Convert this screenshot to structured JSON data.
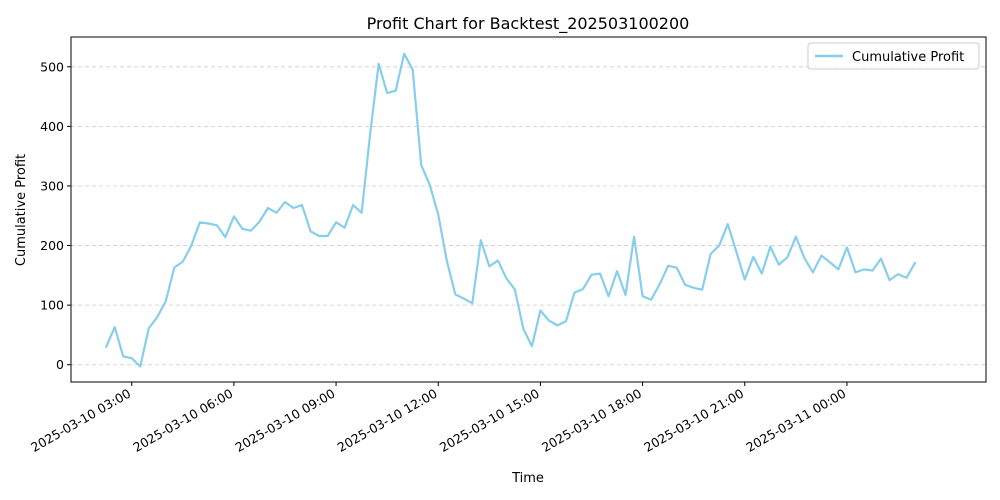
{
  "chart_data": {
    "type": "line",
    "title": "Profit Chart for Backtest_202503100200",
    "xlabel": "Time",
    "ylabel": "Cumulative Profit",
    "grid": "y-dashed",
    "legend_position": "top-right",
    "xlim": [
      "2025-03-10 01:13",
      "2025-03-11 04:05"
    ],
    "ylim": [
      -29,
      550
    ],
    "x_ticks": [
      "2025-03-10 03:00",
      "2025-03-10 06:00",
      "2025-03-10 09:00",
      "2025-03-10 12:00",
      "2025-03-10 15:00",
      "2025-03-10 18:00",
      "2025-03-10 21:00",
      "2025-03-11 00:00"
    ],
    "y_ticks": [
      0,
      100,
      200,
      300,
      400,
      500
    ],
    "series": [
      {
        "name": "Cumulative Profit",
        "color": "#87ceeb",
        "x": [
          "2025-03-10 02:15",
          "2025-03-10 02:30",
          "2025-03-10 02:45",
          "2025-03-10 03:00",
          "2025-03-10 03:15",
          "2025-03-10 03:30",
          "2025-03-10 03:45",
          "2025-03-10 04:00",
          "2025-03-10 04:15",
          "2025-03-10 04:30",
          "2025-03-10 04:45",
          "2025-03-10 05:00",
          "2025-03-10 05:15",
          "2025-03-10 05:30",
          "2025-03-10 05:45",
          "2025-03-10 06:00",
          "2025-03-10 06:15",
          "2025-03-10 06:30",
          "2025-03-10 06:45",
          "2025-03-10 07:00",
          "2025-03-10 07:15",
          "2025-03-10 07:30",
          "2025-03-10 07:45",
          "2025-03-10 08:00",
          "2025-03-10 08:15",
          "2025-03-10 08:30",
          "2025-03-10 08:45",
          "2025-03-10 09:00",
          "2025-03-10 09:15",
          "2025-03-10 09:30",
          "2025-03-10 09:45",
          "2025-03-10 10:00",
          "2025-03-10 10:15",
          "2025-03-10 10:30",
          "2025-03-10 10:45",
          "2025-03-10 11:00",
          "2025-03-10 11:15",
          "2025-03-10 11:30",
          "2025-03-10 11:45",
          "2025-03-10 12:00",
          "2025-03-10 12:15",
          "2025-03-10 12:30",
          "2025-03-10 12:45",
          "2025-03-10 13:00",
          "2025-03-10 13:15",
          "2025-03-10 13:30",
          "2025-03-10 13:45",
          "2025-03-10 14:00",
          "2025-03-10 14:15",
          "2025-03-10 14:30",
          "2025-03-10 14:45",
          "2025-03-10 15:00",
          "2025-03-10 15:15",
          "2025-03-10 15:30",
          "2025-03-10 15:45",
          "2025-03-10 16:00",
          "2025-03-10 16:15",
          "2025-03-10 16:30",
          "2025-03-10 16:45",
          "2025-03-10 17:00",
          "2025-03-10 17:15",
          "2025-03-10 17:30",
          "2025-03-10 17:45",
          "2025-03-10 18:00",
          "2025-03-10 18:15",
          "2025-03-10 18:30",
          "2025-03-10 18:45",
          "2025-03-10 19:00",
          "2025-03-10 19:15",
          "2025-03-10 19:30",
          "2025-03-10 19:45",
          "2025-03-10 20:00",
          "2025-03-10 20:15",
          "2025-03-10 20:30",
          "2025-03-10 20:45",
          "2025-03-10 21:00",
          "2025-03-10 21:15",
          "2025-03-10 21:30",
          "2025-03-10 21:45",
          "2025-03-10 22:00",
          "2025-03-10 22:15",
          "2025-03-10 22:30",
          "2025-03-10 22:45",
          "2025-03-10 23:00",
          "2025-03-10 23:15",
          "2025-03-10 23:30",
          "2025-03-10 23:45",
          "2025-03-11 00:00",
          "2025-03-11 00:15",
          "2025-03-11 00:30",
          "2025-03-11 00:45",
          "2025-03-11 01:00",
          "2025-03-11 01:15",
          "2025-03-11 01:30",
          "2025-03-11 01:45",
          "2025-03-11 02:00"
        ],
        "y": [
          30,
          63,
          14,
          11,
          -3,
          61,
          80,
          107,
          163,
          173,
          200,
          239,
          237,
          234,
          214,
          249,
          228,
          225,
          240,
          263,
          255,
          273,
          263,
          268,
          224,
          216,
          216,
          239,
          230,
          268,
          255,
          387,
          505,
          456,
          460,
          522,
          495,
          335,
          302,
          252,
          175,
          118,
          111,
          103,
          209,
          165,
          175,
          145,
          126,
          60,
          31,
          91,
          74,
          66,
          73,
          121,
          127,
          151,
          153,
          115,
          157,
          117,
          215,
          115,
          109,
          135,
          166,
          163,
          134,
          129,
          126,
          186,
          200,
          236,
          190,
          143,
          181,
          153,
          198,
          168,
          180,
          215,
          179,
          155,
          183,
          172,
          160,
          197,
          155,
          160,
          158,
          178,
          142,
          152,
          146,
          171
        ]
      }
    ]
  }
}
